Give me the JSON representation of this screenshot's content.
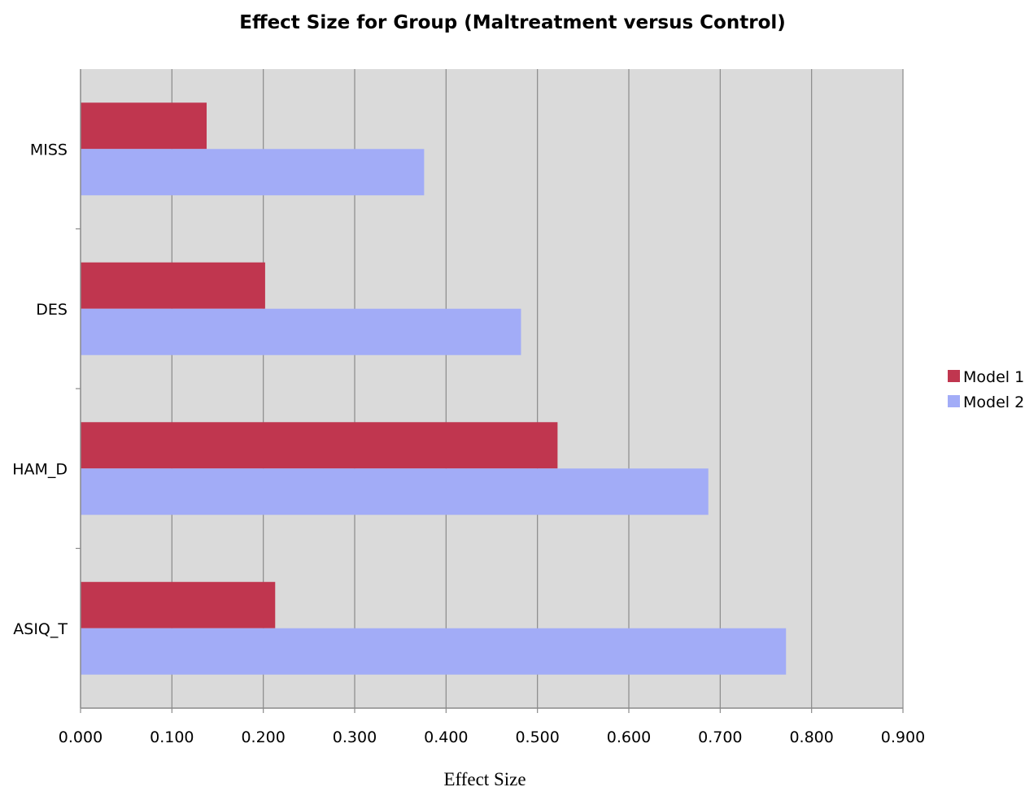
{
  "chart_data": {
    "type": "bar",
    "orientation": "horizontal",
    "title": "Effect Size for Group (Maltreatment versus Control)",
    "xlabel": "Effect Size",
    "ylabel": "",
    "categories": [
      "MISS",
      "DES",
      "HAM_D",
      "ASIQ_T"
    ],
    "series": [
      {
        "name": "Model 1",
        "color": "#c0364f",
        "values": [
          0.138,
          0.202,
          0.522,
          0.213
        ]
      },
      {
        "name": "Model 2",
        "color": "#a2acf7",
        "values": [
          0.376,
          0.482,
          0.687,
          0.772
        ]
      }
    ],
    "xlim": [
      0,
      0.9
    ],
    "xticks": [
      "0.000",
      "0.100",
      "0.200",
      "0.300",
      "0.400",
      "0.500",
      "0.600",
      "0.700",
      "0.800",
      "0.900"
    ],
    "grid": true,
    "plot_background": "#dadada",
    "legend_position": "right"
  }
}
